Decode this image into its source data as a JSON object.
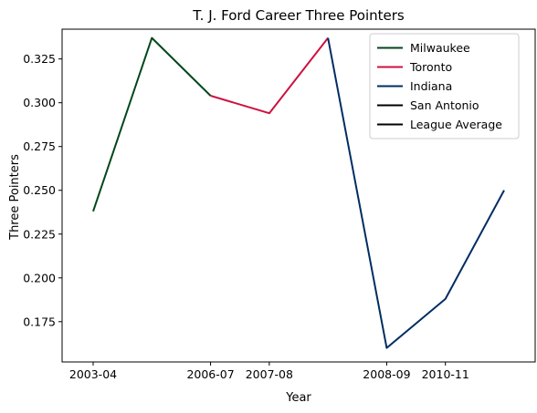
{
  "chart_data": {
    "type": "line",
    "title": "T. J. Ford Career Three Pointers",
    "xlabel": "Year",
    "ylabel": "Three Pointers",
    "x_ticks": [
      "2003-04",
      "2006-07",
      "2007-08",
      "2008-09",
      "2010-11"
    ],
    "y_ticks": [
      "0.175",
      "0.200",
      "0.225",
      "0.250",
      "0.275",
      "0.300",
      "0.325"
    ],
    "ylim": [
      0.152,
      0.342
    ],
    "grid": false,
    "legend_position": "top-right",
    "points": [
      {
        "index": 0,
        "value": 0.238
      },
      {
        "index": 1,
        "value": 0.337
      },
      {
        "index": 2,
        "value": 0.304
      },
      {
        "index": 3,
        "value": 0.294
      },
      {
        "index": 4,
        "value": 0.337
      },
      {
        "index": 5,
        "value": 0.16
      },
      {
        "index": 6,
        "value": 0.188
      },
      {
        "index": 7,
        "value": 0.25
      }
    ],
    "series": [
      {
        "name": "Milwaukee",
        "color": "#00471b",
        "indices": [
          0,
          1,
          2
        ]
      },
      {
        "name": "Toronto",
        "color": "#ce1141",
        "indices": [
          2,
          3,
          4
        ]
      },
      {
        "name": "Indiana",
        "color": "#002d62",
        "indices": [
          4,
          5,
          6,
          7
        ]
      },
      {
        "name": "San Antonio",
        "color": "#000000",
        "indices": []
      },
      {
        "name": "League Average",
        "color": "#000000",
        "indices": []
      }
    ]
  }
}
